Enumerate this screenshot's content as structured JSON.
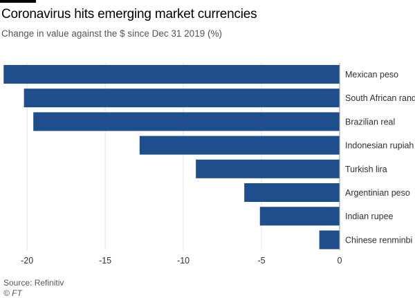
{
  "header": {
    "title": "Coronavirus hits emerging market currencies",
    "subtitle": "Change in value against the $ since Dec 31 2019 (%)"
  },
  "footer": {
    "source": "Source: Refinitiv",
    "credit": "© FT"
  },
  "colors": {
    "bar": "#1f4e8c",
    "grid": "#e6e2dc",
    "text": "#33302e"
  },
  "chart_data": {
    "type": "bar",
    "orientation": "horizontal",
    "categories": [
      "Mexican peso",
      "South African rand",
      "Brazilian real",
      "Indonesian rupiah",
      "Turkish lira",
      "Argentinian peso",
      "Indian rupee",
      "Chinese renminbi"
    ],
    "values": [
      -21.5,
      -20.2,
      -19.6,
      -12.8,
      -9.2,
      -6.1,
      -5.1,
      -1.3
    ],
    "xlim": [
      -21.6,
      0
    ],
    "xticks": [
      -20,
      -15,
      -10,
      -5,
      0
    ],
    "grid": true,
    "legend": "none"
  }
}
